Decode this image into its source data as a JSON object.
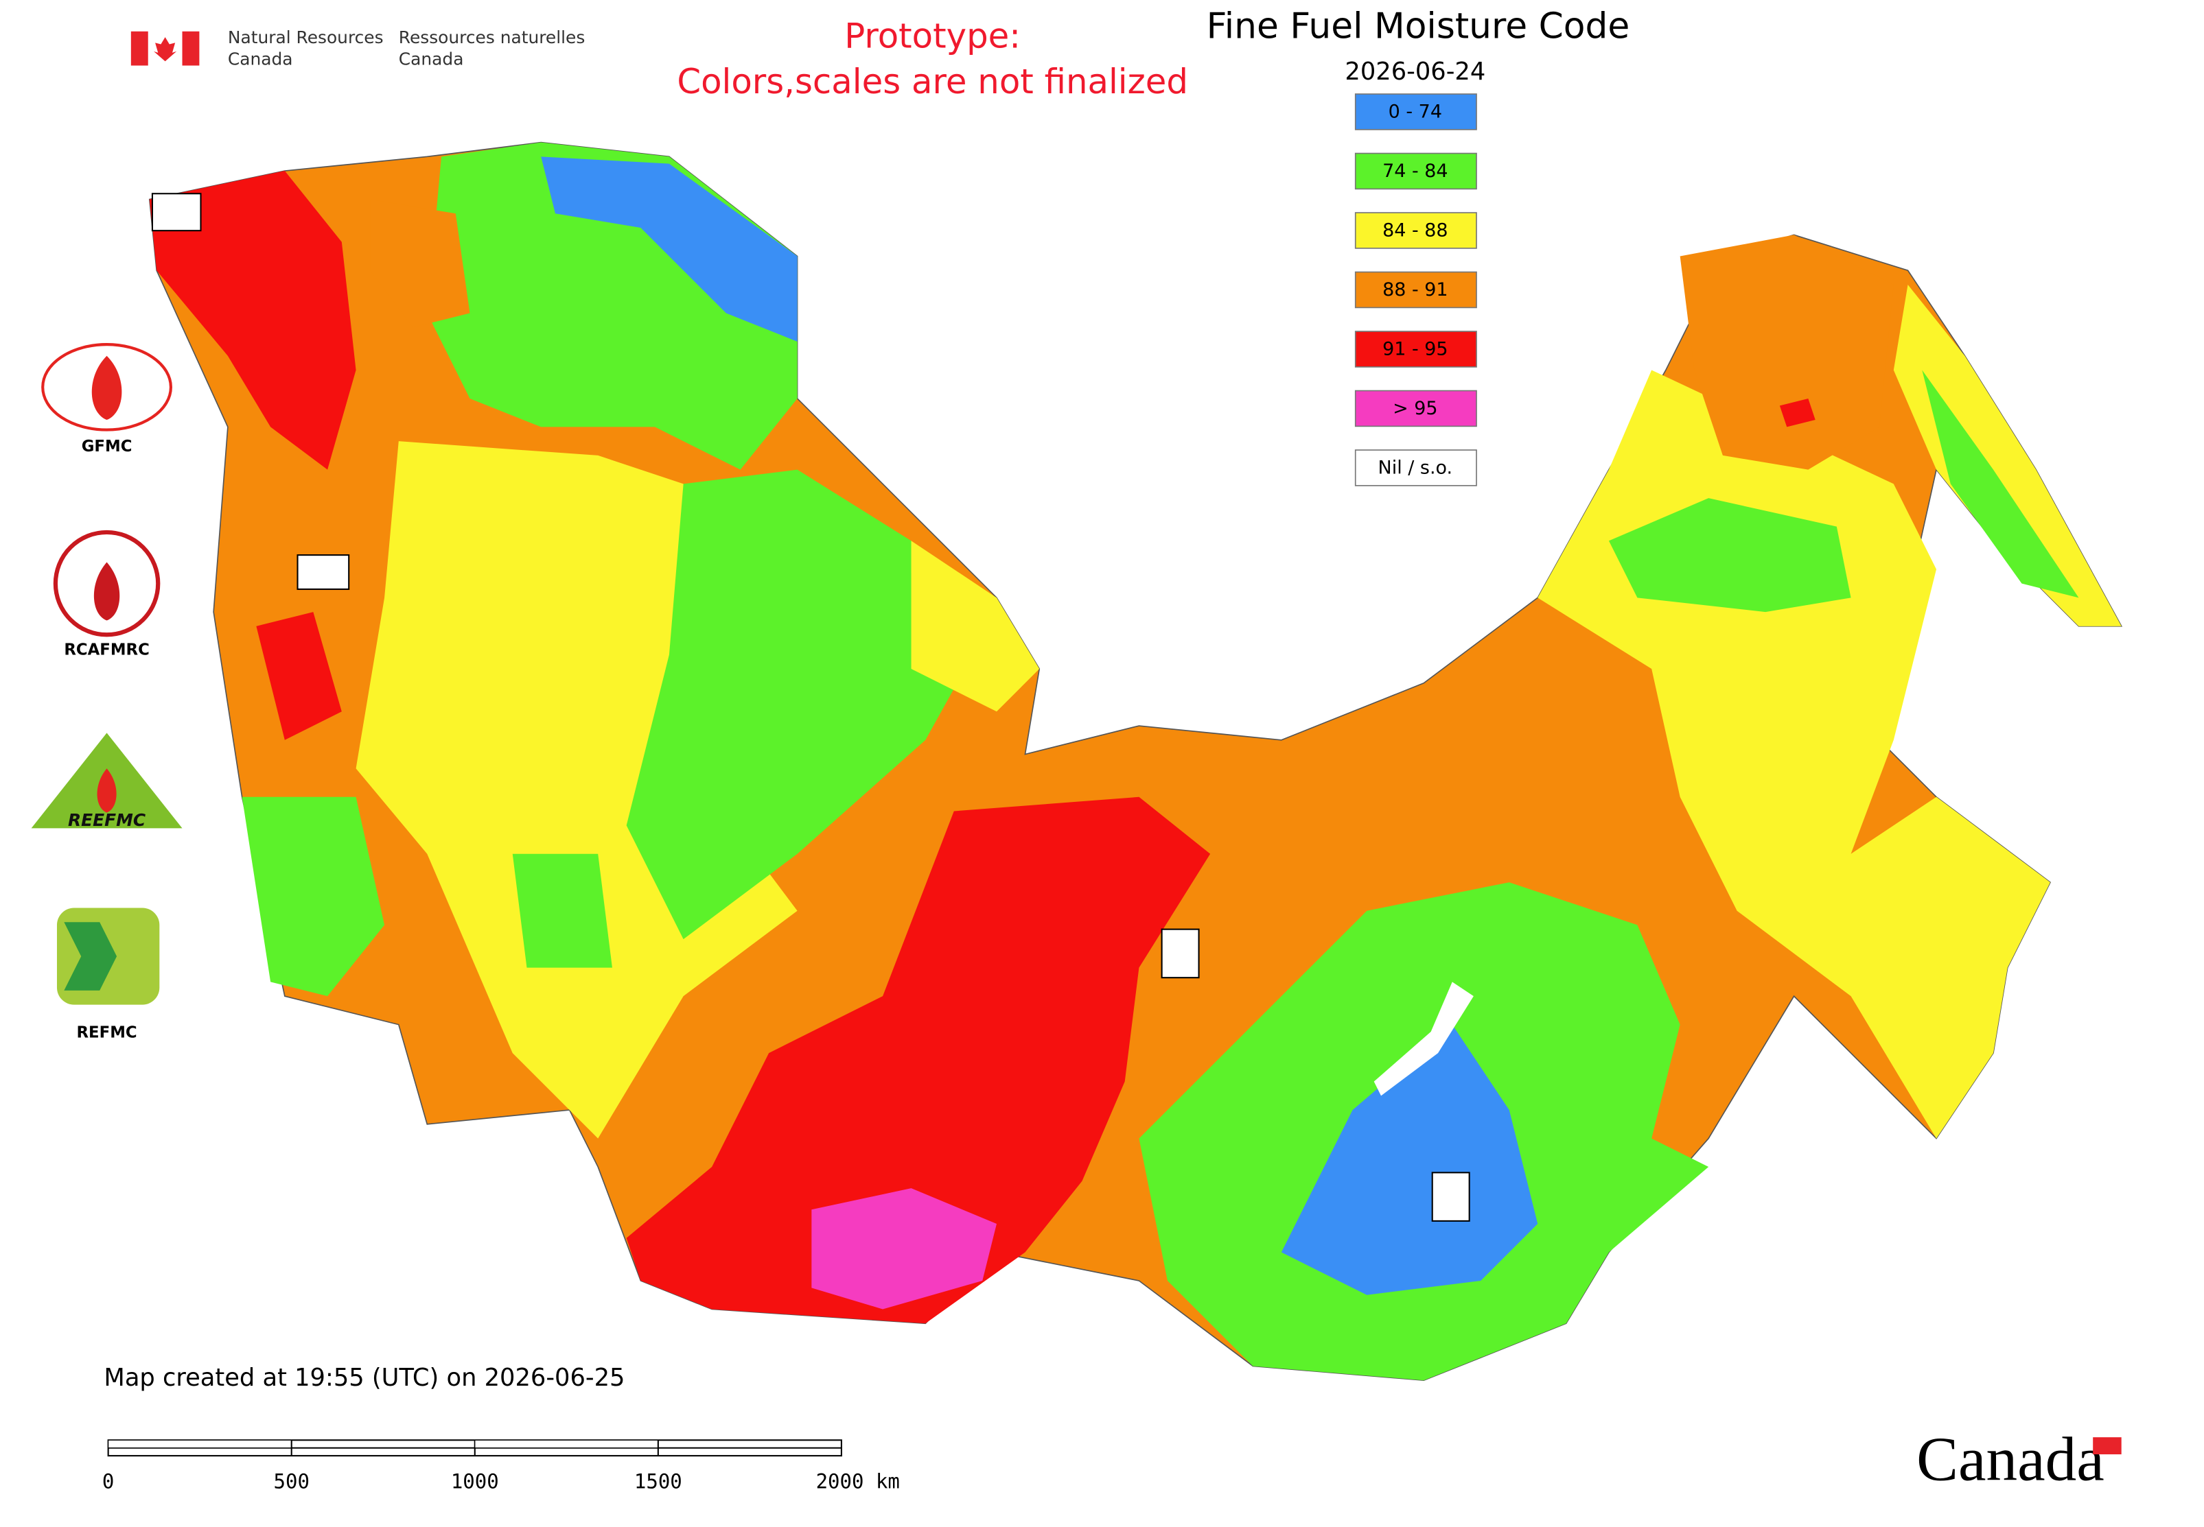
{
  "header": {
    "gov_en": [
      "Natural Resources",
      "Canada"
    ],
    "gov_fr": [
      "Ressources naturelles",
      "Canada"
    ]
  },
  "notice": [
    "Prototype:",
    "Colors,scales are not finalized"
  ],
  "title": "Fine Fuel Moisture Code",
  "date": "2026-06-24",
  "legend": [
    {
      "label": "0 - 74",
      "color": "#3a8ff5"
    },
    {
      "label": "74 - 84",
      "color": "#5cf22a"
    },
    {
      "label": "84 - 88",
      "color": "#fbf52a"
    },
    {
      "label": "88 - 91",
      "color": "#f58a0b"
    },
    {
      "label": "91 - 95",
      "color": "#f5100f"
    },
    {
      "label": "> 95",
      "color": "#f53cc0"
    },
    {
      "label": "Nil / s.o.",
      "color": "#ffffff"
    }
  ],
  "logos": [
    "GFMC",
    "RCAFMRC",
    "REEFMC",
    "REFMC"
  ],
  "footer": {
    "created": "Map created at 19:55 (UTC) on 2026-06-25",
    "scale": [
      "0",
      "500",
      "1000",
      "1500",
      "2000 km"
    ],
    "wordmark": "Canada"
  }
}
